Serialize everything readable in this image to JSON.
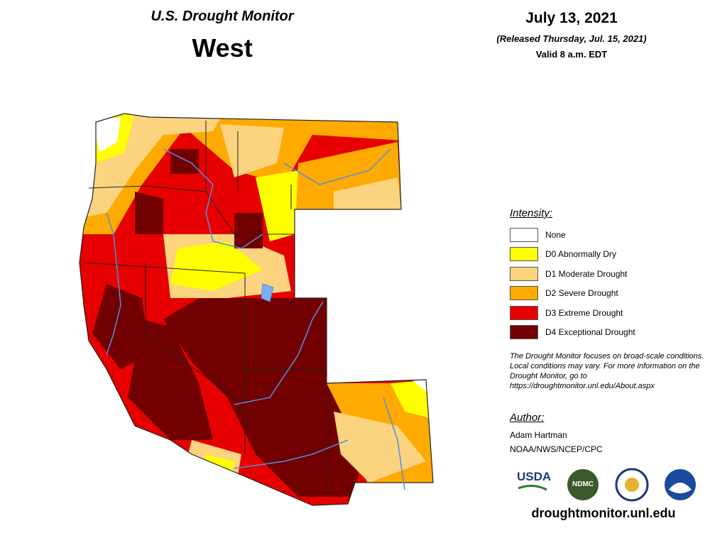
{
  "header": {
    "title": "U.S. Drought Monitor",
    "region": "West",
    "date": "July 13, 2021",
    "released": "(Released Thursday, Jul. 15, 2021)",
    "valid": "Valid 8 a.m. EDT"
  },
  "legend": {
    "title": "Intensity:",
    "items": [
      {
        "label": "None",
        "color": "#ffffff"
      },
      {
        "label": "D0 Abnormally Dry",
        "color": "#ffff00"
      },
      {
        "label": "D1 Moderate Drought",
        "color": "#fcd37f"
      },
      {
        "label": "D2 Severe Drought",
        "color": "#ffaa00"
      },
      {
        "label": "D3 Extreme Drought",
        "color": "#e60000"
      },
      {
        "label": "D4 Exceptional Drought",
        "color": "#730000"
      }
    ]
  },
  "note": "The Drought Monitor focuses on broad-scale conditions. Local conditions may vary. For more information on the Drought Monitor, go to https://droughtmonitor.unl.edu/About.aspx",
  "author": {
    "title": "Author:",
    "name": "Adam Hartman",
    "org": "NOAA/NWS/NCEP/CPC"
  },
  "logos": [
    "USDA",
    "NDMC"
  ],
  "url": "droughtmonitor.unl.edu"
}
